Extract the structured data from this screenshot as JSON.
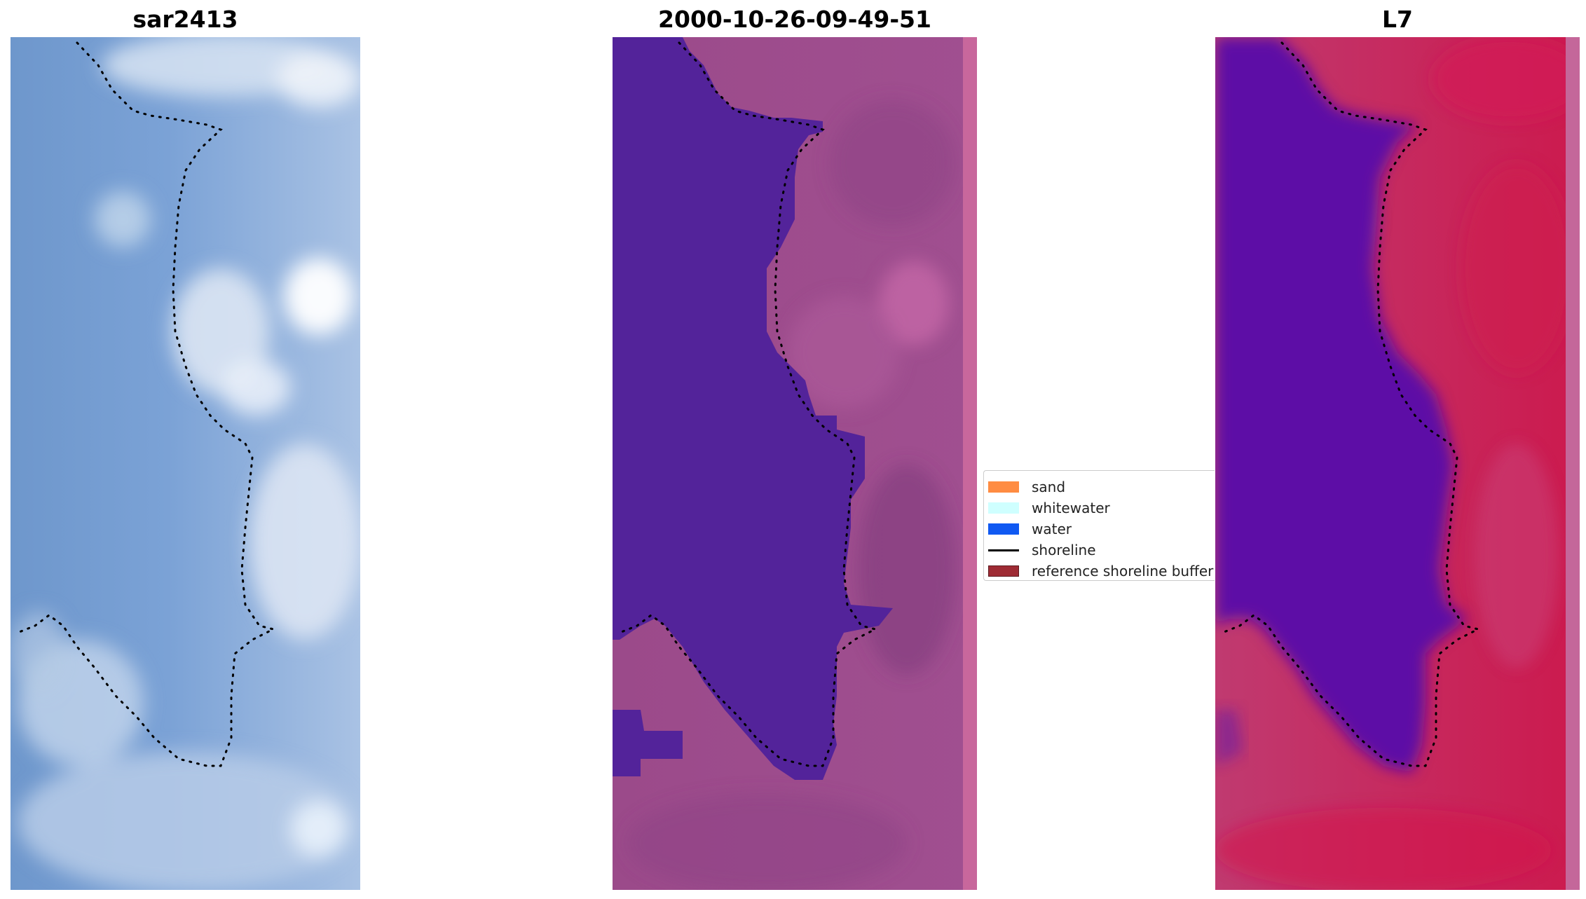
{
  "panels": [
    {
      "title": "sar2413"
    },
    {
      "title": "2000-10-26-09-49-51"
    },
    {
      "title": "L7"
    }
  ],
  "legend": {
    "items": [
      {
        "label": "sand",
        "color": "#ff8c42",
        "kind": "patch"
      },
      {
        "label": "whitewater",
        "color": "#cfffff",
        "kind": "patch"
      },
      {
        "label": "water",
        "color": "#1059f2",
        "kind": "patch"
      },
      {
        "label": "shoreline",
        "color": "#000000",
        "kind": "line"
      },
      {
        "label": "reference shoreline buffer",
        "color": "#9e2b34",
        "kind": "patch"
      }
    ]
  },
  "colors": {
    "panel1_base": "#7aa0d4",
    "panel2_water": "#53239a",
    "panel2_land": "#9a4a89",
    "panel3_water": "#5d0da6",
    "panel3_land": "#c83565"
  }
}
